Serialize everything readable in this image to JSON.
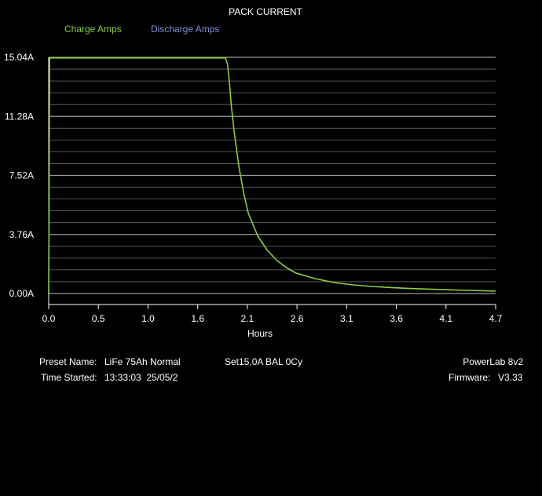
{
  "colors": {
    "background": "#000000",
    "charge": "#8ccf3a",
    "discharge": "#7f8fd6",
    "grid": "#6a6a6a",
    "grid_major": "#9a9a9a",
    "text": "#ffffff"
  },
  "chart_data": {
    "type": "line",
    "title": "PACK CURRENT",
    "xlabel": "Hours",
    "ylabel": "",
    "xlim": [
      0.0,
      4.7
    ],
    "ylim": [
      0.0,
      15.04
    ],
    "x_ticks": [
      "0.0",
      "0.5",
      "1.0",
      "1.6",
      "2.1",
      "2.6",
      "3.1",
      "3.6",
      "4.1",
      "4.7"
    ],
    "y_ticks": [
      "15.04A",
      "11.28A",
      "7.52A",
      "3.76A",
      "0.00A"
    ],
    "y_tick_values": [
      15.04,
      11.28,
      7.52,
      3.76,
      0.0
    ],
    "grid": true,
    "legend_position": "top-left",
    "series": [
      {
        "name": "Charge Amps",
        "x": [
          0.0,
          0.01,
          0.02,
          0.5,
          1.0,
          1.5,
          1.86,
          1.88,
          1.9,
          1.92,
          1.95,
          2.0,
          2.05,
          2.1,
          2.2,
          2.3,
          2.4,
          2.5,
          2.6,
          2.8,
          3.0,
          3.2,
          3.4,
          3.6,
          3.8,
          4.0,
          4.2,
          4.4,
          4.6,
          4.7
        ],
        "values": [
          0.0,
          15.0,
          15.0,
          15.0,
          15.0,
          15.0,
          15.0,
          14.6,
          13.5,
          12.0,
          10.3,
          8.1,
          6.4,
          5.1,
          3.65,
          2.75,
          2.1,
          1.65,
          1.3,
          0.95,
          0.7,
          0.55,
          0.45,
          0.38,
          0.32,
          0.28,
          0.24,
          0.2,
          0.17,
          0.15
        ]
      },
      {
        "name": "Discharge Amps",
        "x": [],
        "values": []
      }
    ]
  },
  "info": {
    "preset_label": "Preset Name:",
    "preset_value": "LiFe 75Ah Normal",
    "set_text": "Set15.0A BAL 0Cy",
    "time_label": "Time Started:",
    "time_value": "13:33:03  25/05/2",
    "device": "PowerLab 8v2",
    "firmware_label": "Firmware:",
    "firmware_value": "V3.33"
  }
}
